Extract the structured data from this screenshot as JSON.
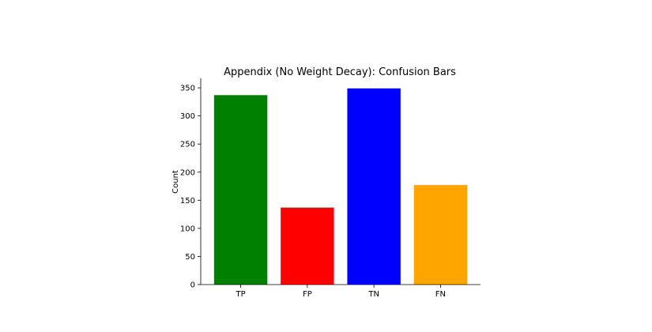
{
  "chart_data": {
    "type": "bar",
    "title": "Appendix (No Weight Decay): Confusion Bars",
    "xlabel": "",
    "ylabel": "Count",
    "categories": [
      "TP",
      "FP",
      "TN",
      "FN"
    ],
    "values": [
      337,
      137,
      349,
      177
    ],
    "colors": [
      "#008000",
      "#ff0000",
      "#0000ff",
      "#ffa500"
    ],
    "ylim": [
      0,
      367
    ],
    "yticks": [
      0,
      50,
      100,
      150,
      200,
      250,
      300,
      350
    ],
    "grid": false,
    "legend": "none"
  }
}
